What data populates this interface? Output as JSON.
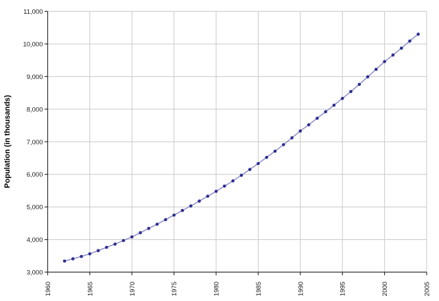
{
  "chart_data": {
    "type": "line",
    "title": "",
    "xlabel": "",
    "ylabel": "Population (in thousands)",
    "legend_position": "none",
    "grid": true,
    "xlim": [
      1960,
      2005
    ],
    "ylim": [
      3000,
      11000
    ],
    "x_ticks": [
      1960,
      1965,
      1970,
      1975,
      1980,
      1985,
      1990,
      1995,
      2000,
      2005
    ],
    "x_tick_labels": [
      "1960",
      "1965",
      "1970",
      "1975",
      "1980",
      "1985",
      "1990",
      "1995",
      "2000",
      "2005"
    ],
    "y_ticks": [
      3000,
      4000,
      5000,
      6000,
      7000,
      8000,
      9000,
      10000,
      11000
    ],
    "y_tick_labels": [
      "3,000",
      "4,000",
      "5,000",
      "6,000",
      "7,000",
      "8,000",
      "9,000",
      "10,000",
      "11,000"
    ],
    "series": [
      {
        "name": "Population",
        "x": [
          1962,
          1963,
          1964,
          1965,
          1966,
          1967,
          1968,
          1969,
          1970,
          1971,
          1972,
          1973,
          1974,
          1975,
          1976,
          1977,
          1978,
          1979,
          1980,
          1981,
          1982,
          1983,
          1984,
          1985,
          1986,
          1987,
          1988,
          1989,
          1990,
          1991,
          1992,
          1993,
          1994,
          1995,
          1996,
          1997,
          1998,
          1999,
          2000,
          2001,
          2002,
          2003,
          2004
        ],
        "y": [
          3340,
          3410,
          3480,
          3560,
          3660,
          3760,
          3860,
          3970,
          4080,
          4210,
          4340,
          4470,
          4610,
          4750,
          4890,
          5030,
          5180,
          5330,
          5480,
          5640,
          5800,
          5970,
          6150,
          6330,
          6520,
          6710,
          6910,
          7120,
          7330,
          7520,
          7720,
          7920,
          8120,
          8330,
          8540,
          8760,
          8990,
          9220,
          9460,
          9660,
          9870,
          10090,
          10300
        ]
      }
    ],
    "colors": {
      "point": "#2e2e94",
      "line": "#8787c4",
      "gridline": "#c9c9c9",
      "axis": "#303030",
      "background": "#ffffff",
      "tick_text": "#1a1a1a"
    }
  }
}
